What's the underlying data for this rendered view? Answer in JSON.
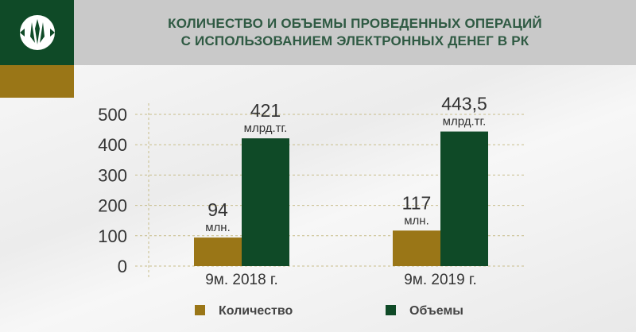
{
  "header": {
    "title_line1": "КОЛИЧЕСТВО И ОБЪЕМЫ ПРОВЕДЕННЫХ ОПЕРАЦИЙ",
    "title_line2": "С ИСПОЛЬЗОВАНИЕМ ЭЛЕКТРОННЫХ ДЕНЕГ В РК"
  },
  "chart_data": {
    "type": "bar",
    "title": "КОЛИЧЕСТВО И ОБЪЕМЫ ПРОВЕДЕННЫХ ОПЕРАЦИЙ С ИСПОЛЬЗОВАНИЕМ ЭЛЕКТРОННЫХ ДЕНЕГ В РК",
    "categories": [
      "9м. 2018 г.",
      "9м. 2019 г."
    ],
    "series": [
      {
        "name": "Количество",
        "color": "#9a7617",
        "values": [
          94,
          117
        ],
        "labels": [
          "94",
          "117"
        ],
        "unit": "млн."
      },
      {
        "name": "Объемы",
        "color": "#0f4a27",
        "values": [
          421,
          443.5
        ],
        "labels": [
          "421",
          "443,5"
        ],
        "unit": "млрд.тг."
      }
    ],
    "yticks": [
      "0",
      "100",
      "200",
      "300",
      "400",
      "500"
    ],
    "ylim": [
      0,
      500
    ],
    "grid": true,
    "legend": "bottom"
  }
}
